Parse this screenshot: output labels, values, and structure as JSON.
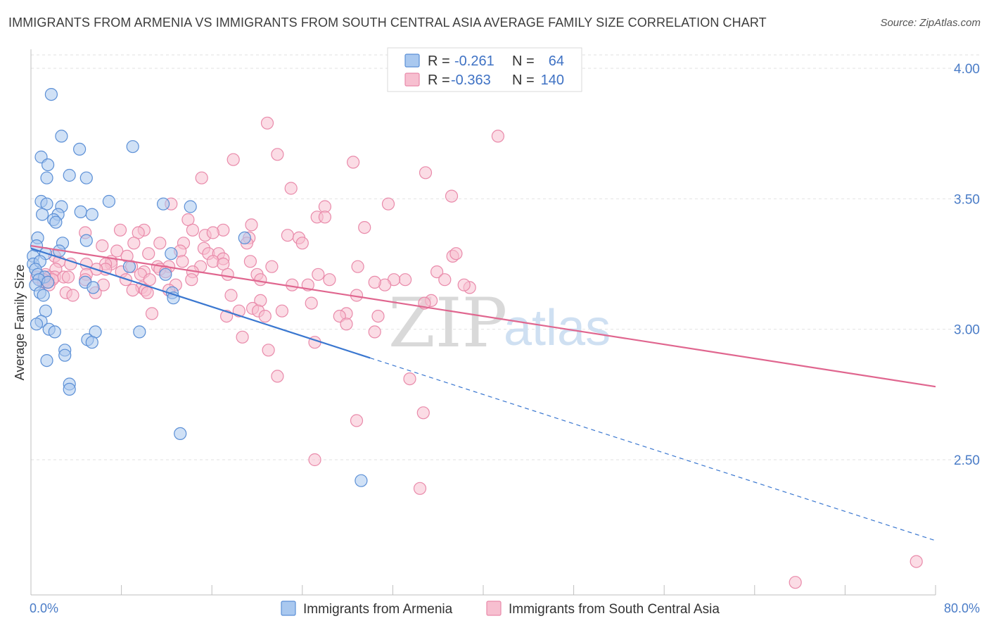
{
  "title": "IMMIGRANTS FROM ARMENIA VS IMMIGRANTS FROM SOUTH CENTRAL ASIA AVERAGE FAMILY SIZE CORRELATION CHART",
  "source": "Source: ZipAtlas.com",
  "watermark": {
    "zip": "ZIP",
    "atlas": "atlas"
  },
  "legend": {
    "r_label": "R =",
    "n_label": "N =",
    "series": [
      {
        "name": "Immigrants from Armenia",
        "r": "-0.261",
        "n": "64"
      },
      {
        "name": "Immigrants from South Central Asia",
        "r": "-0.363",
        "n": "140"
      }
    ]
  },
  "colors": {
    "armenia_fill": "#a9c8ef",
    "armenia_stroke": "#5b8fd6",
    "armenia_line": "#3a77d0",
    "sca_fill": "#f7bfd0",
    "sca_stroke": "#e98aaa",
    "sca_line": "#e0668f",
    "grid": "#e2e2e2",
    "tick_label": "#4a7cc7"
  },
  "chart_data": {
    "type": "scatter",
    "title": "IMMIGRANTS FROM ARMENIA VS IMMIGRANTS FROM SOUTH CENTRAL ASIA AVERAGE FAMILY SIZE CORRELATION CHART",
    "xlabel": "",
    "ylabel": "Average Family Size",
    "xlim": [
      0,
      80
    ],
    "ylim": [
      2.0,
      4.08
    ],
    "x_tick_labels": [
      "0.0%",
      "80.0%"
    ],
    "y_ticks": [
      2.5,
      3.0,
      3.5,
      4.0
    ],
    "y_tick_labels": [
      "2.50",
      "3.00",
      "3.50",
      "4.00"
    ],
    "grid": true,
    "legend_position": "top-center",
    "series": [
      {
        "name": "Immigrants from Armenia",
        "r": -0.261,
        "n": 64,
        "trend": {
          "x_start": 0,
          "y_start": 3.31,
          "x_solid_end": 30,
          "y_solid_end": 2.89,
          "x_end": 80,
          "y_end": 2.19
        },
        "points": [
          [
            1.8,
            3.9
          ],
          [
            2.7,
            3.74
          ],
          [
            4.3,
            3.69
          ],
          [
            9.0,
            3.7
          ],
          [
            0.9,
            3.66
          ],
          [
            1.5,
            3.63
          ],
          [
            1.4,
            3.58
          ],
          [
            3.4,
            3.59
          ],
          [
            4.9,
            3.58
          ],
          [
            0.9,
            3.49
          ],
          [
            1.4,
            3.48
          ],
          [
            2.7,
            3.47
          ],
          [
            6.9,
            3.49
          ],
          [
            11.7,
            3.48
          ],
          [
            14.1,
            3.47
          ],
          [
            1.0,
            3.44
          ],
          [
            2.4,
            3.44
          ],
          [
            4.4,
            3.45
          ],
          [
            5.4,
            3.44
          ],
          [
            2.0,
            3.42
          ],
          [
            2.2,
            3.41
          ],
          [
            0.6,
            3.35
          ],
          [
            2.8,
            3.33
          ],
          [
            4.9,
            3.34
          ],
          [
            18.9,
            3.35
          ],
          [
            0.5,
            3.32
          ],
          [
            2.5,
            3.3
          ],
          [
            12.4,
            3.29
          ],
          [
            1.3,
            3.29
          ],
          [
            0.2,
            3.28
          ],
          [
            0.2,
            3.25
          ],
          [
            0.8,
            3.26
          ],
          [
            0.4,
            3.23
          ],
          [
            8.7,
            3.24
          ],
          [
            0.6,
            3.21
          ],
          [
            11.9,
            3.21
          ],
          [
            1.2,
            3.2
          ],
          [
            0.7,
            3.19
          ],
          [
            1.5,
            3.18
          ],
          [
            0.4,
            3.17
          ],
          [
            4.8,
            3.18
          ],
          [
            5.5,
            3.16
          ],
          [
            12.5,
            3.14
          ],
          [
            0.8,
            3.14
          ],
          [
            1.1,
            3.13
          ],
          [
            12.6,
            3.12
          ],
          [
            1.3,
            3.07
          ],
          [
            0.9,
            3.03
          ],
          [
            0.5,
            3.02
          ],
          [
            1.6,
            3.0
          ],
          [
            2.1,
            2.99
          ],
          [
            9.6,
            2.99
          ],
          [
            5.7,
            2.99
          ],
          [
            5.0,
            2.96
          ],
          [
            5.4,
            2.95
          ],
          [
            3.0,
            2.92
          ],
          [
            3.0,
            2.9
          ],
          [
            1.4,
            2.88
          ],
          [
            3.4,
            2.79
          ],
          [
            3.4,
            2.77
          ],
          [
            13.2,
            2.6
          ],
          [
            29.2,
            2.42
          ]
        ]
      },
      {
        "name": "Immigrants from South Central Asia",
        "r": -0.363,
        "n": 140,
        "trend": {
          "x_start": 0,
          "y_start": 3.32,
          "x_end": 80,
          "y_end": 2.78
        },
        "points": [
          [
            20.9,
            3.79
          ],
          [
            41.3,
            3.74
          ],
          [
            17.9,
            3.65
          ],
          [
            21.8,
            3.67
          ],
          [
            28.5,
            3.64
          ],
          [
            15.1,
            3.58
          ],
          [
            34.9,
            3.6
          ],
          [
            23.0,
            3.54
          ],
          [
            37.2,
            3.51
          ],
          [
            12.4,
            3.48
          ],
          [
            26.0,
            3.47
          ],
          [
            31.6,
            3.48
          ],
          [
            25.3,
            3.43
          ],
          [
            26.0,
            3.43
          ],
          [
            13.9,
            3.42
          ],
          [
            19.5,
            3.4
          ],
          [
            29.5,
            3.39
          ],
          [
            14.3,
            3.38
          ],
          [
            15.4,
            3.36
          ],
          [
            17.0,
            3.38
          ],
          [
            10.0,
            3.38
          ],
          [
            7.9,
            3.38
          ],
          [
            9.5,
            3.37
          ],
          [
            16.1,
            3.37
          ],
          [
            22.7,
            3.36
          ],
          [
            23.7,
            3.35
          ],
          [
            19.3,
            3.35
          ],
          [
            24.0,
            3.33
          ],
          [
            4.8,
            3.37
          ],
          [
            9.1,
            3.33
          ],
          [
            13.5,
            3.33
          ],
          [
            19.1,
            3.33
          ],
          [
            11.4,
            3.33
          ],
          [
            15.3,
            3.31
          ],
          [
            6.3,
            3.32
          ],
          [
            7.6,
            3.3
          ],
          [
            13.2,
            3.3
          ],
          [
            15.7,
            3.29
          ],
          [
            10.4,
            3.29
          ],
          [
            16.6,
            3.29
          ],
          [
            2.1,
            3.28
          ],
          [
            8.5,
            3.28
          ],
          [
            17.0,
            3.27
          ],
          [
            16.1,
            3.26
          ],
          [
            7.1,
            3.26
          ],
          [
            13.4,
            3.26
          ],
          [
            2.5,
            3.26
          ],
          [
            7.1,
            3.25
          ],
          [
            3.5,
            3.25
          ],
          [
            6.6,
            3.25
          ],
          [
            4.9,
            3.25
          ],
          [
            8.9,
            3.24
          ],
          [
            12.2,
            3.24
          ],
          [
            11.2,
            3.24
          ],
          [
            15.0,
            3.24
          ],
          [
            6.6,
            3.23
          ],
          [
            11.4,
            3.23
          ],
          [
            21.3,
            3.24
          ],
          [
            28.9,
            3.24
          ],
          [
            2.2,
            3.23
          ],
          [
            5.8,
            3.23
          ],
          [
            37.3,
            3.28
          ],
          [
            37.6,
            3.29
          ],
          [
            8.0,
            3.22
          ],
          [
            10.0,
            3.22
          ],
          [
            11.9,
            3.22
          ],
          [
            19.4,
            3.26
          ],
          [
            17.0,
            3.25
          ],
          [
            35.9,
            3.22
          ],
          [
            14.3,
            3.22
          ],
          [
            4.9,
            3.21
          ],
          [
            9.7,
            3.21
          ],
          [
            1.3,
            3.21
          ],
          [
            1.6,
            3.2
          ],
          [
            0.5,
            3.2
          ],
          [
            17.4,
            3.21
          ],
          [
            20.0,
            3.21
          ],
          [
            25.4,
            3.21
          ],
          [
            2.1,
            3.2
          ],
          [
            2.9,
            3.2
          ],
          [
            3.3,
            3.2
          ],
          [
            1.1,
            3.19
          ],
          [
            1.9,
            3.19
          ],
          [
            1.1,
            3.18
          ],
          [
            1.5,
            3.18
          ],
          [
            4.8,
            3.19
          ],
          [
            8.4,
            3.19
          ],
          [
            10.5,
            3.19
          ],
          [
            14.2,
            3.19
          ],
          [
            20.3,
            3.19
          ],
          [
            33.1,
            3.19
          ],
          [
            24.5,
            3.17
          ],
          [
            32.1,
            3.19
          ],
          [
            23.1,
            3.17
          ],
          [
            31.3,
            3.17
          ],
          [
            30.4,
            3.18
          ],
          [
            36.6,
            3.19
          ],
          [
            38.8,
            3.16
          ],
          [
            38.3,
            3.17
          ],
          [
            26.4,
            3.19
          ],
          [
            1.6,
            3.17
          ],
          [
            6.4,
            3.17
          ],
          [
            12.8,
            3.17
          ],
          [
            9.8,
            3.16
          ],
          [
            10.1,
            3.15
          ],
          [
            5.7,
            3.14
          ],
          [
            9.0,
            3.15
          ],
          [
            12.2,
            3.15
          ],
          [
            10.3,
            3.14
          ],
          [
            3.1,
            3.14
          ],
          [
            3.7,
            3.13
          ],
          [
            17.7,
            3.13
          ],
          [
            28.8,
            3.13
          ],
          [
            20.3,
            3.11
          ],
          [
            24.8,
            3.1
          ],
          [
            35.4,
            3.11
          ],
          [
            34.8,
            3.1
          ],
          [
            19.6,
            3.08
          ],
          [
            20.1,
            3.07
          ],
          [
            18.4,
            3.07
          ],
          [
            22.2,
            3.07
          ],
          [
            10.7,
            3.06
          ],
          [
            27.9,
            3.06
          ],
          [
            17.3,
            3.05
          ],
          [
            20.7,
            3.05
          ],
          [
            27.3,
            3.05
          ],
          [
            30.7,
            3.05
          ],
          [
            27.9,
            3.02
          ],
          [
            30.4,
            2.99
          ],
          [
            18.7,
            2.97
          ],
          [
            25.1,
            2.95
          ],
          [
            21.0,
            2.92
          ],
          [
            21.8,
            2.82
          ],
          [
            33.5,
            2.81
          ],
          [
            34.7,
            2.68
          ],
          [
            28.8,
            2.65
          ],
          [
            25.1,
            2.5
          ],
          [
            34.4,
            2.39
          ],
          [
            78.3,
            2.11
          ],
          [
            67.6,
            2.03
          ]
        ]
      }
    ]
  }
}
